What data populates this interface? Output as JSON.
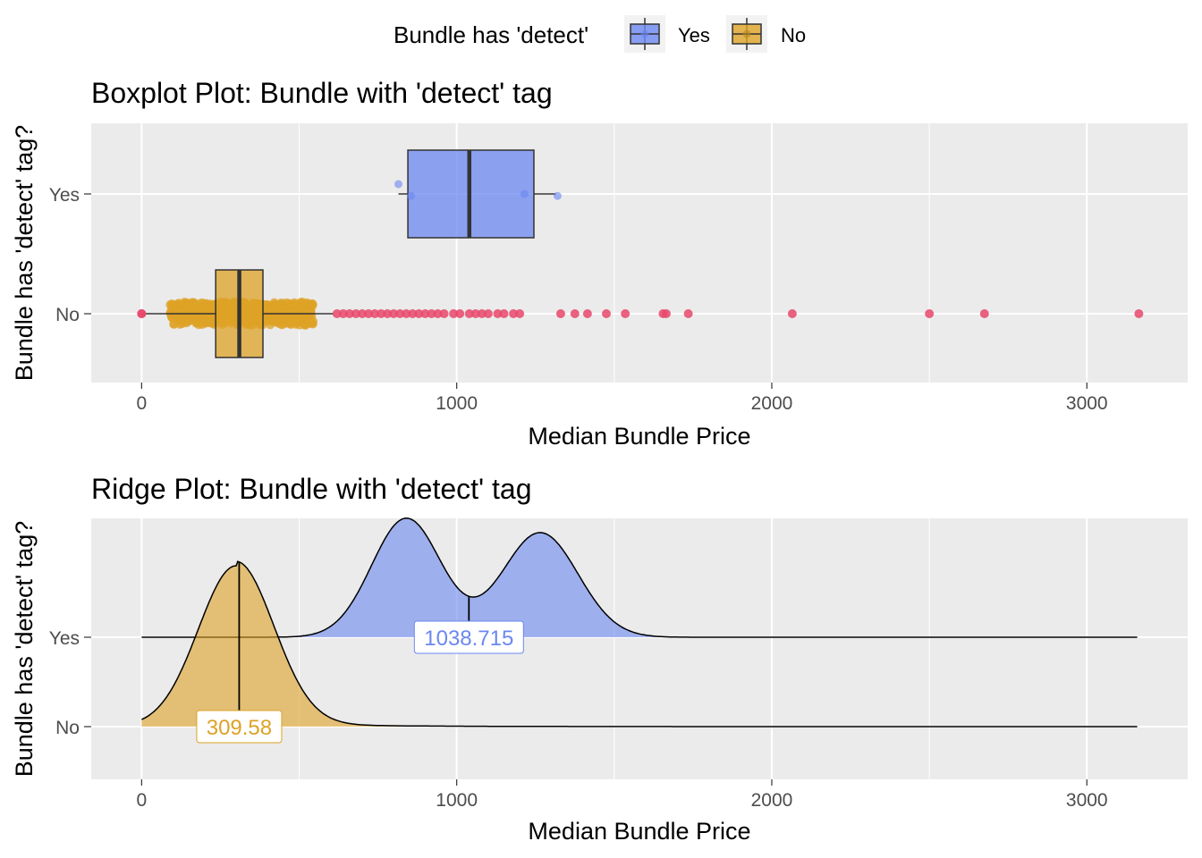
{
  "legend": {
    "title": "Bundle has 'detect'",
    "items": [
      {
        "label": "Yes",
        "color": "#6b87f0"
      },
      {
        "label": "No",
        "color": "#dda226"
      }
    ]
  },
  "chart_data": [
    {
      "type": "boxplot",
      "title": "Boxplot Plot: Bundle with 'detect' tag",
      "xlabel": "Median Bundle Price",
      "ylabel": "Bundle has 'detect' tag?",
      "xlim": [
        -160,
        3320
      ],
      "x_ticks": [
        0,
        1000,
        2000,
        3000
      ],
      "x_tick_labels": [
        "0",
        "1000",
        "2000",
        "3000"
      ],
      "categories": [
        "Yes",
        "No"
      ],
      "grid": true,
      "boxes": [
        {
          "name": "Yes",
          "color": "#6b87f0",
          "whisker_low": 815,
          "q1": 845,
          "median": 1040,
          "q3": 1245,
          "whisker_high": 1315,
          "points": [
            {
              "x": 815,
              "y": 0.1
            },
            {
              "x": 855,
              "y": -0.02
            },
            {
              "x": 1215,
              "y": 0.0
            },
            {
              "x": 1320,
              "y": -0.02
            }
          ]
        },
        {
          "name": "No",
          "color": "#dda226",
          "whisker_low": 0,
          "q1": 235,
          "median": 310,
          "q3": 385,
          "whisker_high": 610,
          "point_cloud": {
            "from": 90,
            "to": 545
          }
        }
      ],
      "outliers_color": "#e8486b",
      "outliers_no": [
        0,
        0,
        620,
        640,
        660,
        680,
        700,
        720,
        740,
        760,
        780,
        800,
        820,
        840,
        860,
        880,
        900,
        920,
        940,
        960,
        990,
        1010,
        1040,
        1060,
        1080,
        1100,
        1130,
        1150,
        1180,
        1200,
        1330,
        1375,
        1415,
        1475,
        1535,
        1655,
        1665,
        1735,
        2065,
        2500,
        2675,
        3165
      ]
    },
    {
      "type": "ridge",
      "title": "Ridge Plot: Bundle with 'detect' tag",
      "xlabel": "Median Bundle Price",
      "ylabel": "Bundle has 'detect' tag?",
      "xlim": [
        -160,
        3320
      ],
      "x_ticks": [
        0,
        1000,
        2000,
        3000
      ],
      "x_tick_labels": [
        "0",
        "1000",
        "2000",
        "3000"
      ],
      "categories": [
        "Yes",
        "No"
      ],
      "grid": true,
      "series": [
        {
          "name": "Yes",
          "color": "#6b87f0",
          "median": 1038.715,
          "median_label": "1038.715",
          "range": [
            0,
            3160
          ],
          "peaks": [
            {
              "mu": 840,
              "sd": 110,
              "h": 1.33
            },
            {
              "mu": 1265,
              "sd": 120,
              "h": 1.17
            }
          ]
        },
        {
          "name": "No",
          "color": "#dda226",
          "median": 309.58,
          "median_label": "309.58",
          "range": [
            0,
            3160
          ],
          "peaks": [
            {
              "mu": 300,
              "sd": 120,
              "h": 1.8
            }
          ],
          "tail": {
            "h": 0.05,
            "decay": 300
          }
        }
      ]
    }
  ]
}
